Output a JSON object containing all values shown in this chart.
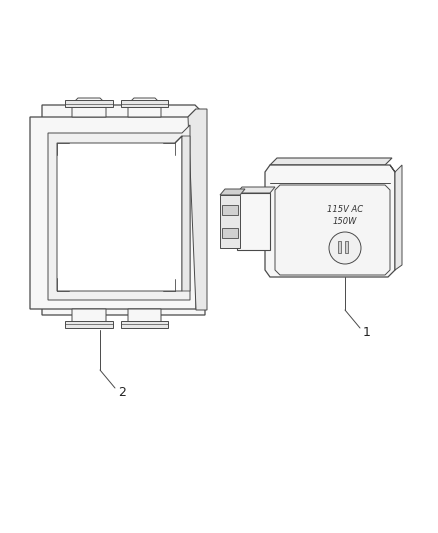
{
  "background_color": "#ffffff",
  "fig_width": 4.38,
  "fig_height": 5.33,
  "dpi": 100,
  "label1_text": "1",
  "label2_text": "2",
  "outlet_text1": "115V AC",
  "outlet_text2": "150W",
  "line_color": "#4a4a4a",
  "face_color": "#f7f7f7",
  "shade_color": "#e8e8e8",
  "dark_shade": "#d0d0d0"
}
